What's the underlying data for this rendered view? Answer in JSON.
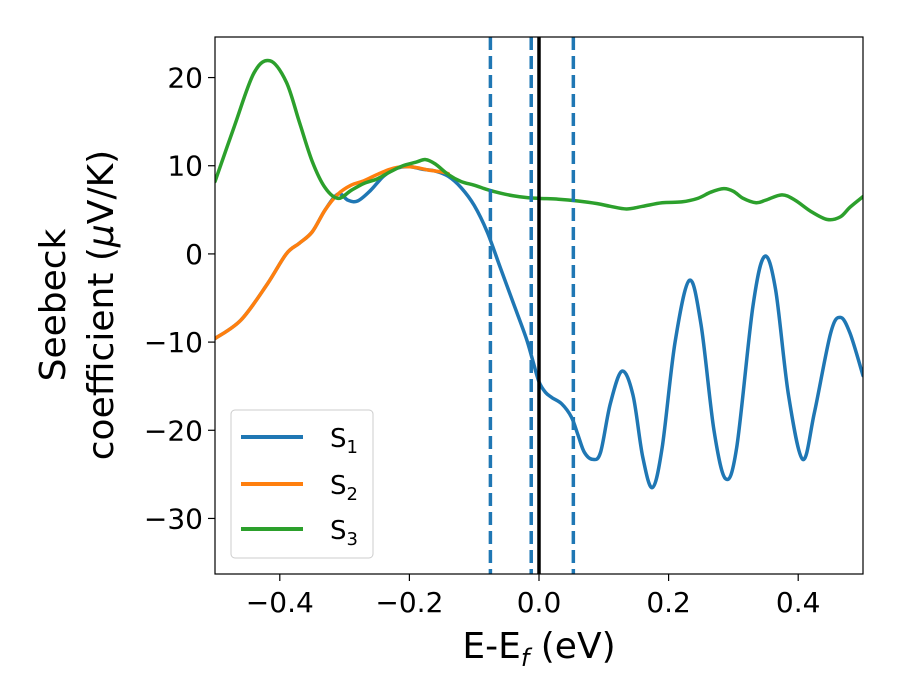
{
  "chart_data": {
    "type": "line",
    "xlabel": "E-E",
    "xlabel_sub": "f",
    "xlabel_unit": " (eV)",
    "ylabel_line1": "Seebeck",
    "ylabel_line2_pre": "coefficient  (",
    "ylabel_mu": "μ",
    "ylabel_line2_post": "V/K)",
    "xlim": [
      -0.5,
      0.5
    ],
    "ylim": [
      -36.3,
      24.6
    ],
    "xticks": [
      -0.4,
      -0.2,
      0.0,
      0.2,
      0.4
    ],
    "xtick_labels": [
      "−0.4",
      "−0.2",
      "0.0",
      "0.2",
      "0.4"
    ],
    "yticks": [
      -30,
      -20,
      -10,
      0,
      10,
      20
    ],
    "ytick_labels": [
      "−30",
      "−20",
      "−10",
      "0",
      "10",
      "20"
    ],
    "grid": false,
    "legend_position": "lower-left",
    "vlines": [
      {
        "x": 0.0,
        "style": "solid",
        "color": "#000000"
      },
      {
        "x": -0.075,
        "style": "dashed",
        "color": "#1f77b4"
      },
      {
        "x": -0.012,
        "style": "dashed",
        "color": "#1f77b4"
      },
      {
        "x": 0.053,
        "style": "dashed",
        "color": "#1f77b4"
      }
    ],
    "series": [
      {
        "name": "S",
        "sub": "1",
        "color": "#1f77b4",
        "points": [
          [
            -0.5,
            -9.6
          ],
          [
            -0.46,
            -7.5
          ],
          [
            -0.42,
            -3.5
          ],
          [
            -0.39,
            0.0
          ],
          [
            -0.37,
            1.2
          ],
          [
            -0.35,
            2.5
          ],
          [
            -0.33,
            5.0
          ],
          [
            -0.31,
            6.8
          ],
          [
            -0.295,
            6.1
          ],
          [
            -0.28,
            6.0
          ],
          [
            -0.26,
            7.2
          ],
          [
            -0.24,
            8.8
          ],
          [
            -0.22,
            9.7
          ],
          [
            -0.2,
            9.9
          ],
          [
            -0.18,
            9.6
          ],
          [
            -0.16,
            9.4
          ],
          [
            -0.14,
            8.8
          ],
          [
            -0.12,
            7.5
          ],
          [
            -0.1,
            5.5
          ],
          [
            -0.08,
            2.5
          ],
          [
            -0.06,
            -1.5
          ],
          [
            -0.04,
            -5.5
          ],
          [
            -0.02,
            -9.5
          ],
          [
            -0.01,
            -12.0
          ],
          [
            0.0,
            -14.5
          ],
          [
            0.01,
            -15.7
          ],
          [
            0.02,
            -16.3
          ],
          [
            0.035,
            -17.0
          ],
          [
            0.05,
            -18.5
          ],
          [
            0.06,
            -20.5
          ],
          [
            0.07,
            -22.5
          ],
          [
            0.083,
            -23.3
          ],
          [
            0.095,
            -22.5
          ],
          [
            0.11,
            -17.0
          ],
          [
            0.128,
            -13.3
          ],
          [
            0.145,
            -16.0
          ],
          [
            0.16,
            -23.0
          ],
          [
            0.175,
            -26.5
          ],
          [
            0.19,
            -22.0
          ],
          [
            0.21,
            -10.0
          ],
          [
            0.232,
            -3.0
          ],
          [
            0.25,
            -8.0
          ],
          [
            0.27,
            -20.0
          ],
          [
            0.288,
            -25.5
          ],
          [
            0.305,
            -22.0
          ],
          [
            0.33,
            -6.0
          ],
          [
            0.348,
            -0.3
          ],
          [
            0.365,
            -4.0
          ],
          [
            0.385,
            -16.0
          ],
          [
            0.407,
            -23.3
          ],
          [
            0.425,
            -18.0
          ],
          [
            0.45,
            -9.0
          ],
          [
            0.465,
            -7.2
          ],
          [
            0.48,
            -9.0
          ],
          [
            0.5,
            -13.8
          ]
        ]
      },
      {
        "name": "S",
        "sub": "2",
        "color": "#ff7f0e",
        "points": [
          [
            -0.5,
            -9.6
          ],
          [
            -0.46,
            -7.5
          ],
          [
            -0.42,
            -3.5
          ],
          [
            -0.39,
            0.0
          ],
          [
            -0.37,
            1.2
          ],
          [
            -0.35,
            2.5
          ],
          [
            -0.33,
            5.0
          ],
          [
            -0.31,
            6.8
          ],
          [
            -0.29,
            7.8
          ],
          [
            -0.27,
            8.3
          ],
          [
            -0.25,
            9.0
          ],
          [
            -0.23,
            9.6
          ],
          [
            -0.21,
            9.9
          ],
          [
            -0.19,
            9.8
          ],
          [
            -0.17,
            9.5
          ],
          [
            -0.15,
            9.3
          ],
          [
            -0.14,
            9.1
          ]
        ]
      },
      {
        "name": "S",
        "sub": "3",
        "color": "#2ca02c",
        "points": [
          [
            -0.5,
            8.2
          ],
          [
            -0.47,
            14.5
          ],
          [
            -0.44,
            20.5
          ],
          [
            -0.415,
            21.9
          ],
          [
            -0.39,
            19.5
          ],
          [
            -0.37,
            15.0
          ],
          [
            -0.35,
            10.5
          ],
          [
            -0.33,
            7.5
          ],
          [
            -0.31,
            6.3
          ],
          [
            -0.29,
            7.2
          ],
          [
            -0.27,
            8.0
          ],
          [
            -0.25,
            8.5
          ],
          [
            -0.23,
            9.3
          ],
          [
            -0.21,
            10.0
          ],
          [
            -0.19,
            10.4
          ],
          [
            -0.175,
            10.7
          ],
          [
            -0.16,
            10.2
          ],
          [
            -0.14,
            9.0
          ],
          [
            -0.12,
            8.2
          ],
          [
            -0.1,
            7.8
          ],
          [
            -0.08,
            7.3
          ],
          [
            -0.06,
            6.9
          ],
          [
            -0.04,
            6.6
          ],
          [
            -0.02,
            6.4
          ],
          [
            0.0,
            6.3
          ],
          [
            0.03,
            6.2
          ],
          [
            0.06,
            6.0
          ],
          [
            0.09,
            5.7
          ],
          [
            0.11,
            5.4
          ],
          [
            0.135,
            5.1
          ],
          [
            0.16,
            5.4
          ],
          [
            0.19,
            5.8
          ],
          [
            0.22,
            5.9
          ],
          [
            0.245,
            6.3
          ],
          [
            0.265,
            7.0
          ],
          [
            0.285,
            7.4
          ],
          [
            0.3,
            7.1
          ],
          [
            0.315,
            6.3
          ],
          [
            0.335,
            5.8
          ],
          [
            0.35,
            6.1
          ],
          [
            0.375,
            6.7
          ],
          [
            0.395,
            6.1
          ],
          [
            0.42,
            4.8
          ],
          [
            0.445,
            3.9
          ],
          [
            0.465,
            4.2
          ],
          [
            0.48,
            5.3
          ],
          [
            0.5,
            6.5
          ]
        ]
      }
    ]
  }
}
